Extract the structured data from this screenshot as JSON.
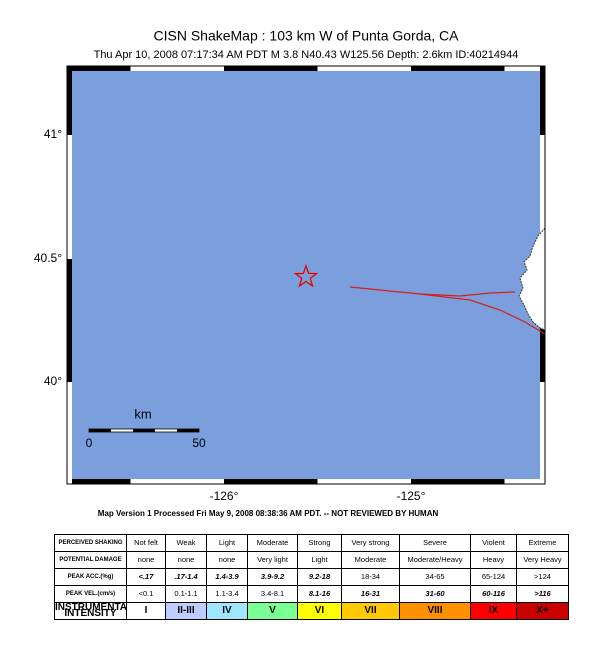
{
  "header": {
    "title": "CISN ShakeMap : 103 km W of Punta Gorda, CA",
    "subtitle": "Thu Apr 10, 2008 07:17:34 AM PDT   M 3.8   N40.43 W125.56   Depth: 2.6km   ID:40214944"
  },
  "map": {
    "lat_labels": [
      "41°",
      "40.5°",
      "40°"
    ],
    "lon_labels": [
      "-126°",
      "-125°"
    ],
    "scale_bar": {
      "unit": "km",
      "start": "0",
      "end": "50"
    }
  },
  "footer": "Map Version 1 Processed Fri May 9, 2008 08:38:36 AM PDT. -- NOT REVIEWED BY HUMAN",
  "legend": {
    "rows": [
      {
        "label": "PERCEIVED SHAKING",
        "cells": [
          "Not felt",
          "Weak",
          "Light",
          "Moderate",
          "Strong",
          "Very strong",
          "Severe",
          "Violent",
          "Extreme"
        ]
      },
      {
        "label": "POTENTIAL DAMAGE",
        "cells": [
          "none",
          "none",
          "none",
          "Very light",
          "Light",
          "Moderate",
          "Moderate/Heavy",
          "Heavy",
          "Very Heavy"
        ]
      },
      {
        "label": "PEAK ACC.(%g)",
        "cells": [
          "<.17",
          ".17-1.4",
          "1.4-3.9",
          "3.9-9.2",
          "9.2-18",
          "18-34",
          "34-65",
          "65-124",
          ">124"
        ]
      },
      {
        "label": "PEAK VEL.(cm/s)",
        "cells": [
          "<0.1",
          "0.1-1.1",
          "1.1-3.4",
          "3.4-8.1",
          "8.1-16",
          "16-31",
          "31-60",
          "60-116",
          ">116"
        ]
      },
      {
        "label": "INSTRUMENTAL INTENSITY",
        "cells": [
          "I",
          "II-III",
          "IV",
          "V",
          "VI",
          "VII",
          "VIII",
          "IX",
          "X+"
        ]
      }
    ]
  }
}
